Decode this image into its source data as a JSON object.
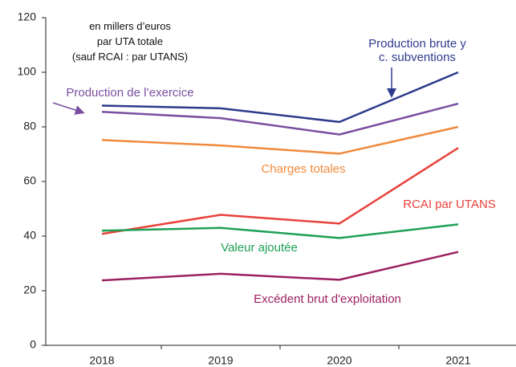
{
  "chart_data": {
    "type": "line",
    "note": [
      "en millers d’euros",
      "par UTA totale",
      "(sauf RCAI : par UTANS)"
    ],
    "categories": [
      "2018",
      "2019",
      "2020",
      "2021"
    ],
    "series": [
      {
        "name": "Production brute y c. subventions",
        "color": "#2e3a8c",
        "values": [
          87.8,
          86.8,
          81.8,
          100
        ]
      },
      {
        "name": "Production de l’exercice",
        "color": "#7b4fa0",
        "values": [
          85.5,
          83.2,
          77.2,
          88.5
        ]
      },
      {
        "name": "Charges totales",
        "color": "#f08a3c",
        "values": [
          75.2,
          73.2,
          70.2,
          80
        ]
      },
      {
        "name": "RCAI par UTANS",
        "color": "#e8423c",
        "values": [
          40.8,
          47.8,
          44.6,
          72.3
        ]
      },
      {
        "name": "Valeur ajoutée",
        "color": "#1fa055",
        "values": [
          42,
          43,
          39.3,
          44.3
        ]
      },
      {
        "name": "Excédent brut d'exploitation",
        "color": "#9b2060",
        "values": [
          23.8,
          26.2,
          24,
          34.2
        ]
      }
    ],
    "ylim": [
      0,
      120
    ],
    "yticks": [
      0,
      20,
      40,
      60,
      80,
      100,
      120
    ]
  }
}
